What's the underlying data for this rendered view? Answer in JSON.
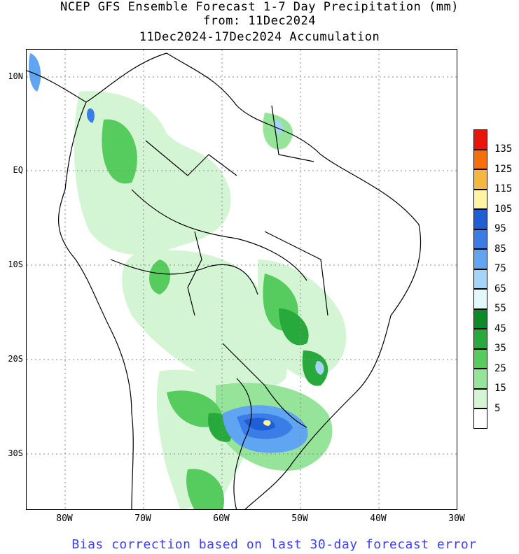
{
  "title": {
    "line1": "NCEP GFS Ensemble Forecast 1-7 Day Precipitation (mm)",
    "line2": "from: 11Dec2024",
    "line3": "11Dec2024-17Dec2024 Accumulation"
  },
  "axes": {
    "lat_labels": [
      "10N",
      "EQ",
      "10S",
      "20S",
      "30S"
    ],
    "lon_labels": [
      "80W",
      "70W",
      "60W",
      "50W",
      "40W",
      "30W"
    ]
  },
  "legend": {
    "levels": [
      {
        "label": "135",
        "color": "#e8160a"
      },
      {
        "label": "125",
        "color": "#f5700a"
      },
      {
        "label": "115",
        "color": "#f5b83c"
      },
      {
        "label": "105",
        "color": "#fff5a0"
      },
      {
        "label": "95",
        "color": "#1e5ed6"
      },
      {
        "label": "85",
        "color": "#3a7de6"
      },
      {
        "label": "75",
        "color": "#5fa5f2"
      },
      {
        "label": "65",
        "color": "#a6d4f7"
      },
      {
        "label": "55",
        "color": "#e3f8f8"
      },
      {
        "label": "45",
        "color": "#0e8a2a"
      },
      {
        "label": "35",
        "color": "#27a93c"
      },
      {
        "label": "25",
        "color": "#57cc5e"
      },
      {
        "label": "15",
        "color": "#96e39a"
      },
      {
        "label": "5",
        "color": "#d4f5d4"
      },
      {
        "label": "",
        "color": "#ffffff"
      }
    ]
  },
  "footer": "Bias correction based on last 30-day forecast error"
}
